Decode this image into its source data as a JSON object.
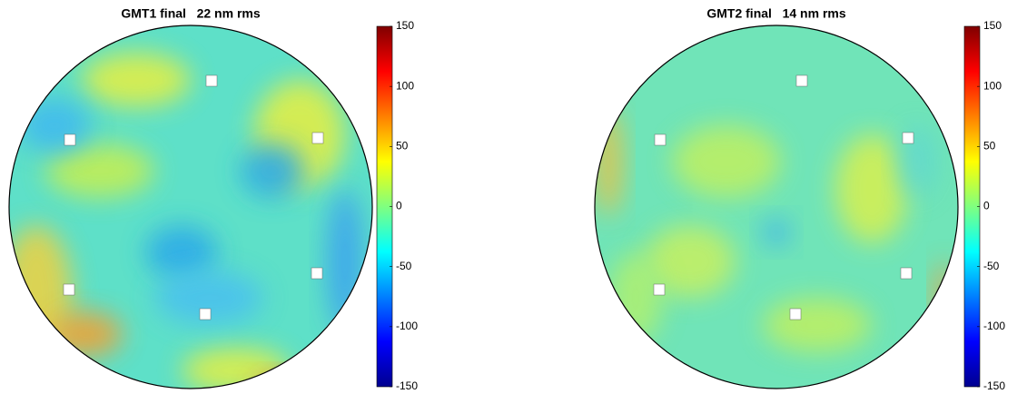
{
  "chart_data": [
    {
      "type": "surface-map",
      "title": "GMT1 final   22 nm rms",
      "colormap": "jet",
      "clim": [
        -150,
        150
      ],
      "cticks": [
        -150,
        -100,
        -50,
        0,
        50,
        100,
        150
      ]
    },
    {
      "type": "surface-map",
      "title": "GMT2 final   14 nm rms",
      "colormap": "jet",
      "clim": [
        -150,
        150
      ],
      "cticks": [
        -150,
        -100,
        -50,
        0,
        50,
        100,
        150
      ]
    }
  ]
}
